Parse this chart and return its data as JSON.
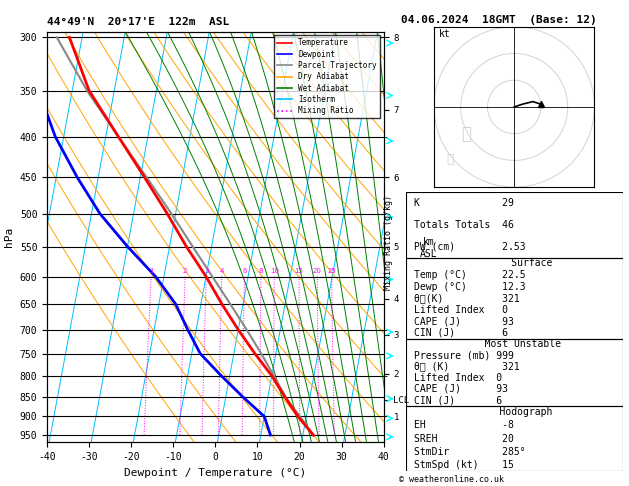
{
  "title_left": "44°49'N  20°17'E  122m  ASL",
  "title_right": "04.06.2024  18GMT  (Base: 12)",
  "xlabel": "Dewpoint / Temperature (°C)",
  "ylabel_left": "hPa",
  "legend_items": [
    "Temperature",
    "Dewpoint",
    "Parcel Trajectory",
    "Dry Adiabat",
    "Wet Adiabat",
    "Isotherm",
    "Mixing Ratio"
  ],
  "legend_colors": [
    "#ff0000",
    "#0000ff",
    "#888888",
    "#ffa500",
    "#008000",
    "#00bfff",
    "#ff00ff"
  ],
  "legend_styles": [
    "solid",
    "solid",
    "solid",
    "solid",
    "solid",
    "solid",
    "dotted"
  ],
  "pressure_ticks": [
    300,
    350,
    400,
    450,
    500,
    550,
    600,
    650,
    700,
    750,
    800,
    850,
    900,
    950
  ],
  "temp_range": [
    -40,
    40
  ],
  "temp_profile_p": [
    950,
    900,
    850,
    800,
    750,
    700,
    650,
    600,
    550,
    500,
    450,
    400,
    350,
    300
  ],
  "temp_profile_t": [
    22.5,
    18.0,
    14.0,
    10.0,
    5.0,
    0.0,
    -5.0,
    -10.0,
    -16.0,
    -22.0,
    -29.0,
    -37.0,
    -46.0,
    -53.0
  ],
  "dewp_profile_p": [
    950,
    900,
    850,
    800,
    750,
    700,
    650,
    600,
    550,
    500,
    450,
    400,
    350,
    300
  ],
  "dewp_profile_t": [
    12.3,
    10.0,
    4.0,
    -2.0,
    -8.0,
    -12.0,
    -16.0,
    -22.0,
    -30.0,
    -38.0,
    -45.0,
    -52.0,
    -58.0,
    -62.0
  ],
  "parcel_profile_p": [
    950,
    900,
    860,
    850,
    800,
    750,
    700,
    650,
    600,
    550,
    500,
    450,
    400,
    350,
    300
  ],
  "parcel_profile_t": [
    22.5,
    18.5,
    15.0,
    14.2,
    10.5,
    6.5,
    2.0,
    -3.0,
    -8.5,
    -14.5,
    -21.0,
    -28.5,
    -37.0,
    -46.5,
    -56.0
  ],
  "km_labels": {
    "8": 300,
    "7": 370,
    "6": 450,
    "5": 550,
    "4": 640,
    "3": 710,
    "2": 795,
    "LCL": 857,
    "1": 900
  },
  "stats_k": 29,
  "stats_tt": 46,
  "stats_pw": 2.53,
  "surface_temp": 22.5,
  "surface_dewp": 12.3,
  "surface_thetae": 321,
  "surface_li": 0,
  "surface_cape": 93,
  "surface_cin": 6,
  "mu_pressure": 999,
  "mu_thetae": 321,
  "mu_li": 0,
  "mu_cape": 93,
  "mu_cin": 6,
  "hodo_eh": -8,
  "hodo_sreh": 20,
  "hodo_stmdir": 285,
  "hodo_stmspd": 15,
  "bg_color": "#ffffff"
}
